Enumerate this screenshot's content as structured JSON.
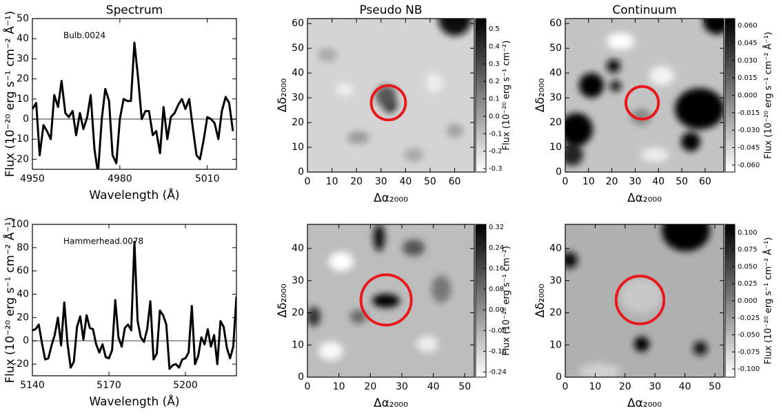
{
  "chart_data": [
    {
      "type": "line",
      "title": "Spectrum",
      "annotation": "Bulb.0024",
      "x_label": "Wavelength (Å)",
      "y_label": "Flux (10⁻²⁰ erg s⁻¹ cm⁻² Å⁻¹)",
      "x": [
        4950,
        4951.3,
        4952.5,
        4953.8,
        4955,
        4956.3,
        4957.5,
        4958.8,
        4960,
        4961.3,
        4962.5,
        4963.8,
        4965,
        4966.3,
        4967.5,
        4968.8,
        4970,
        4971.3,
        4972.5,
        4973.8,
        4975,
        4976.3,
        4977.5,
        4978.8,
        4980,
        4981.3,
        4982.5,
        4983.8,
        4985,
        4986.3,
        4987.5,
        4988.8,
        4990,
        4991.3,
        4992.5,
        4993.8,
        4995,
        4996.3,
        4997.5,
        4998.8,
        5000,
        5001.3,
        5002.5,
        5003.8,
        5005,
        5006.3,
        5007.5,
        5008.8,
        5010,
        5011.3,
        5012.5,
        5013.8,
        5015,
        5016.3,
        5017.5,
        5018.8
      ],
      "series": [
        {
          "color": "#000000",
          "values": [
            5,
            8,
            -18,
            -3,
            -6,
            -10,
            12,
            6,
            19,
            3,
            1,
            4,
            -8,
            3,
            -5,
            1,
            12,
            -15,
            -27,
            0,
            15,
            9,
            -18,
            -22,
            0,
            10,
            9,
            9,
            38,
            20,
            0,
            4,
            4,
            -8,
            -6,
            -17,
            6,
            -10,
            1,
            3,
            7,
            10,
            5,
            10,
            -4,
            -18,
            -20,
            -10,
            1,
            0,
            -2,
            -10,
            4,
            11,
            8,
            -6
          ]
        }
      ],
      "reference_line": {
        "y": 0,
        "color": "#999999"
      },
      "xlim": [
        4950,
        5020
      ],
      "xticks": [
        4950,
        4980,
        5010
      ],
      "ylim": [
        -25,
        50
      ],
      "yticks": [
        -20,
        -10,
        0,
        10,
        20,
        30,
        40,
        50
      ]
    },
    {
      "type": "heatmap",
      "title": "Pseudo NB",
      "x_label": "Δα₂₀₀₀",
      "y_label": "Δδ₂₀₀₀",
      "xlim": [
        0,
        68
      ],
      "xticks": [
        0,
        10,
        20,
        30,
        40,
        50,
        60
      ],
      "ylim": [
        0,
        62
      ],
      "yticks": [
        0,
        10,
        20,
        30,
        40,
        50,
        60
      ],
      "circle": {
        "x": 33,
        "y": 28,
        "r": 7,
        "color": "#e8191c"
      },
      "colorbar": {
        "label": "Flux (10⁻²⁰ erg s⁻¹ cm⁻²)",
        "cmap": [
          "#ffffff",
          "#000000"
        ],
        "lim": [
          -0.32,
          0.56
        ],
        "ticks": [
          -0.3,
          -0.2,
          -0.1,
          {
            "value": 0,
            "label": "0.0"
          },
          0.1,
          0.2,
          0.3,
          0.4,
          0.5
        ]
      }
    },
    {
      "type": "heatmap",
      "title": "Continuum",
      "x_label": "Δα₂₀₀₀",
      "y_label": "Δδ₂₀₀₀",
      "xlim": [
        0,
        68
      ],
      "xticks": [
        0,
        10,
        20,
        30,
        40,
        50,
        60
      ],
      "ylim": [
        0,
        62
      ],
      "yticks": [
        0,
        10,
        20,
        30,
        40,
        50,
        60
      ],
      "circle": {
        "x": 33,
        "y": 28,
        "r": 7,
        "color": "#e8191c"
      },
      "colorbar": {
        "label": "Flux (10⁻²⁰ erg s⁻¹ cm⁻² Å⁻¹)",
        "cmap": [
          "#ffffff",
          "#000000"
        ],
        "lim": [
          -0.066,
          0.066
        ],
        "ticks": [
          {
            "value": -0.06,
            "label": "-0.060"
          },
          -0.045,
          {
            "value": -0.03,
            "label": "-0.030"
          },
          -0.015,
          {
            "value": 0,
            "label": "0.000"
          },
          0.015,
          {
            "value": 0.03,
            "label": "0.030"
          },
          0.045,
          {
            "value": 0.06,
            "label": "0.060"
          }
        ]
      }
    },
    {
      "type": "line",
      "annotation": "Hammerhead.0078",
      "x_label": "Wavelength (Å)",
      "y_label": "Flux (10⁻²⁰ erg s⁻¹ cm⁻² Å⁻¹)",
      "x": [
        5140,
        5141.25,
        5142.5,
        5143.75,
        5145,
        5146.25,
        5147.5,
        5148.75,
        5150,
        5151.25,
        5152.5,
        5153.75,
        5155,
        5156.25,
        5157.5,
        5158.75,
        5160,
        5161.25,
        5162.5,
        5163.75,
        5165,
        5166.25,
        5167.5,
        5168.75,
        5170,
        5171.25,
        5172.5,
        5173.75,
        5175,
        5176.25,
        5177.5,
        5178.75,
        5180,
        5181.25,
        5182.5,
        5183.75,
        5185,
        5186.25,
        5187.5,
        5188.75,
        5190,
        5191.25,
        5192.5,
        5193.75,
        5195,
        5196.25,
        5197.5,
        5198.75,
        5200,
        5201.25,
        5202.5,
        5203.75,
        5205,
        5206.25,
        5207.5,
        5208.75,
        5210,
        5211.25,
        5212.5,
        5213.75,
        5215,
        5216.25,
        5217.5,
        5218.75,
        5220
      ],
      "series": [
        {
          "color": "#000000",
          "values": [
            9,
            10,
            14,
            -2,
            -16,
            -15,
            -4,
            5,
            20,
            -4,
            33,
            -2,
            -23,
            -18,
            12,
            21,
            1,
            22,
            11,
            10,
            -3,
            -10,
            -3,
            -14,
            -15,
            -8,
            35,
            3,
            -5,
            11,
            14,
            9,
            85,
            17,
            3,
            -1,
            10,
            34,
            -16,
            -11,
            26,
            22,
            14,
            -24,
            -21,
            -20,
            -23,
            -16,
            -15,
            -10,
            30,
            -20,
            -13,
            3,
            -3,
            10,
            -5,
            5,
            -20,
            17,
            12,
            -6,
            -15,
            -5,
            38
          ]
        }
      ],
      "reference_line": {
        "y": 0,
        "color": "#999999"
      },
      "xlim": [
        5140,
        5220
      ],
      "xticks": [
        5140,
        5170,
        5200
      ],
      "ylim": [
        -30,
        100
      ],
      "yticks": [
        -20,
        0,
        20,
        40,
        60,
        80,
        100
      ]
    },
    {
      "type": "heatmap",
      "x_label": "Δα₂₀₀₀",
      "y_label": "Δδ₂₀₀₀",
      "xlim": [
        0,
        53
      ],
      "xticks": [
        0,
        10,
        20,
        30,
        40,
        50
      ],
      "ylim": [
        0,
        47.5
      ],
      "yticks": [
        0,
        10,
        20,
        30,
        40
      ],
      "circle": {
        "x": 25,
        "y": 24,
        "r": 8,
        "color": "#e8191c"
      },
      "colorbar": {
        "label": "Flux (10⁻²⁰ erg s⁻¹ cm⁻²)",
        "cmap": [
          "#ffffff",
          "#000000"
        ],
        "lim": [
          -0.26,
          0.33
        ],
        "ticks": [
          -0.24,
          -0.16,
          -0.08,
          {
            "value": 0,
            "label": "0.00"
          },
          0.08,
          0.16,
          0.24,
          0.32
        ]
      }
    },
    {
      "type": "heatmap",
      "x_label": "Δα₂₀₀₀",
      "y_label": "Δδ₂₀₀₀",
      "xlim": [
        0,
        53
      ],
      "xticks": [
        0,
        10,
        20,
        30,
        40,
        50
      ],
      "ylim": [
        0,
        47.5
      ],
      "yticks": [
        0,
        10,
        20,
        30,
        40
      ],
      "circle": {
        "x": 25,
        "y": 24,
        "r": 8,
        "color": "#e8191c"
      },
      "colorbar": {
        "label": "Flux (10⁻²⁰ erg s⁻¹ cm⁻² Å⁻¹)",
        "cmap": [
          "#ffffff",
          "#000000"
        ],
        "lim": [
          -0.112,
          0.112
        ],
        "ticks": [
          {
            "value": -0.1,
            "label": "-0.100"
          },
          -0.075,
          {
            "value": -0.05,
            "label": "-0.050"
          },
          -0.025,
          {
            "value": 0,
            "label": "0.000"
          },
          0.025,
          {
            "value": 0.05,
            "label": "0.050"
          },
          0.075,
          {
            "value": 0.1,
            "label": "0.100"
          }
        ]
      }
    }
  ]
}
